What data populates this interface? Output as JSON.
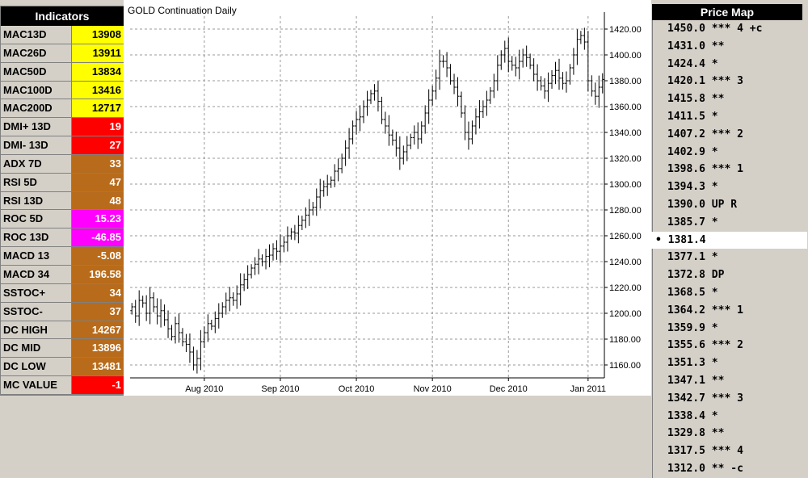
{
  "indicators": {
    "title": "Indicators",
    "rows": [
      {
        "label": "MAC13D",
        "value": "13908",
        "color": "#ffff00",
        "textColor": "#000000"
      },
      {
        "label": "MAC26D",
        "value": "13911",
        "color": "#ffff00",
        "textColor": "#000000"
      },
      {
        "label": "MAC50D",
        "value": "13834",
        "color": "#ffff00",
        "textColor": "#000000"
      },
      {
        "label": "MAC100D",
        "value": "13416",
        "color": "#ffff00",
        "textColor": "#000000"
      },
      {
        "label": "MAC200D",
        "value": "12717",
        "color": "#ffff00",
        "textColor": "#000000"
      },
      {
        "label": "DMI+ 13D",
        "value": "19",
        "color": "#ff0000",
        "textColor": "#ffffff"
      },
      {
        "label": "DMI- 13D",
        "value": "27",
        "color": "#ff0000",
        "textColor": "#ffffff"
      },
      {
        "label": "ADX 7D",
        "value": "33",
        "color": "#b86b1a",
        "textColor": "#ffffff"
      },
      {
        "label": "RSI 5D",
        "value": "47",
        "color": "#b86b1a",
        "textColor": "#ffffff"
      },
      {
        "label": "RSI 13D",
        "value": "48",
        "color": "#b86b1a",
        "textColor": "#ffffff"
      },
      {
        "label": "ROC 5D",
        "value": "15.23",
        "color": "#ff00ff",
        "textColor": "#ffffff"
      },
      {
        "label": "ROC 13D",
        "value": "-46.85",
        "color": "#ff00ff",
        "textColor": "#ffffff"
      },
      {
        "label": "MACD 13",
        "value": "-5.08",
        "color": "#b86b1a",
        "textColor": "#ffffff"
      },
      {
        "label": "MACD 34",
        "value": "196.58",
        "color": "#b86b1a",
        "textColor": "#ffffff"
      },
      {
        "label": "SSTOC+",
        "value": "34",
        "color": "#b86b1a",
        "textColor": "#ffffff"
      },
      {
        "label": "SSTOC-",
        "value": "37",
        "color": "#b86b1a",
        "textColor": "#ffffff"
      },
      {
        "label": "DC HIGH",
        "value": "14267",
        "color": "#b86b1a",
        "textColor": "#ffffff"
      },
      {
        "label": "DC MID",
        "value": "13896",
        "color": "#b86b1a",
        "textColor": "#ffffff"
      },
      {
        "label": "DC LOW",
        "value": "13481",
        "color": "#b86b1a",
        "textColor": "#ffffff"
      },
      {
        "label": "MC VALUE",
        "value": "-1",
        "color": "#ff0000",
        "textColor": "#ffffff"
      }
    ]
  },
  "chart_data": {
    "type": "ohlc",
    "title": "GOLD Continuation Daily",
    "ylim": [
      1150,
      1430
    ],
    "yticks": [
      1160,
      1180,
      1200,
      1220,
      1240,
      1260,
      1280,
      1300,
      1320,
      1340,
      1360,
      1380,
      1400,
      1420
    ],
    "ytick_labels": [
      "1160.00",
      "1180.00",
      "1200.00",
      "1220.00",
      "1240.00",
      "1260.00",
      "1280.00",
      "1300.00",
      "1320.00",
      "1340.00",
      "1360.00",
      "1380.00",
      "1400.00",
      "1420.00"
    ],
    "xticks": [
      {
        "label": "Aug 2010",
        "index": 20
      },
      {
        "label": "Sep 2010",
        "index": 41
      },
      {
        "label": "Oct 2010",
        "index": 62
      },
      {
        "label": "Nov 2010",
        "index": 83
      },
      {
        "label": "Dec 2010",
        "index": 104
      },
      {
        "label": "Jan 2011",
        "index": 126
      }
    ],
    "grid": true,
    "bar_color": "#000000",
    "close_series": [
      1205,
      1198,
      1210,
      1208,
      1200,
      1212,
      1205,
      1198,
      1202,
      1195,
      1188,
      1182,
      1192,
      1185,
      1178,
      1176,
      1170,
      1160,
      1165,
      1178,
      1185,
      1192,
      1190,
      1196,
      1200,
      1205,
      1210,
      1212,
      1210,
      1215,
      1222,
      1226,
      1230,
      1235,
      1238,
      1242,
      1240,
      1244,
      1245,
      1250,
      1248,
      1252,
      1255,
      1260,
      1263,
      1262,
      1268,
      1272,
      1276,
      1280,
      1282,
      1290,
      1295,
      1298,
      1300,
      1303,
      1310,
      1312,
      1320,
      1328,
      1335,
      1345,
      1350,
      1352,
      1360,
      1365,
      1370,
      1372,
      1364,
      1350,
      1345,
      1338,
      1334,
      1328,
      1320,
      1325,
      1330,
      1336,
      1340,
      1335,
      1345,
      1355,
      1365,
      1372,
      1382,
      1395,
      1395,
      1390,
      1380,
      1375,
      1368,
      1355,
      1340,
      1335,
      1345,
      1352,
      1356,
      1360,
      1365,
      1372,
      1380,
      1392,
      1400,
      1405,
      1395,
      1392,
      1390,
      1395,
      1400,
      1398,
      1392,
      1385,
      1380,
      1376,
      1372,
      1378,
      1384,
      1388,
      1382,
      1378,
      1380,
      1390,
      1400,
      1412,
      1415,
      1410,
      1380,
      1372,
      1368,
      1375,
      1381
    ]
  },
  "pricemap": {
    "title": "Price Map",
    "rows": [
      "1450.0 *** 4 +c",
      "1431.0 **",
      "1424.4 *",
      "1420.1 *** 3",
      "1415.8 **",
      "1411.5 *",
      "1407.2 *** 2",
      "1402.9 *",
      "1398.6 *** 1",
      "1394.3 *",
      "1390.0 UP R",
      "1385.7 *",
      "• 1381.4",
      "1377.1 *",
      "1372.8 DP",
      "1368.5 *",
      "1364.2 *** 1",
      "1359.9 *",
      "1355.6 *** 2",
      "1351.3 *",
      "1347.1 **",
      "1342.7 *** 3",
      "1338.4 *",
      "1329.8 **",
      "1317.5 *** 4",
      "1312.0 ** -c"
    ],
    "current_index": 12,
    "current_marker": "•"
  }
}
